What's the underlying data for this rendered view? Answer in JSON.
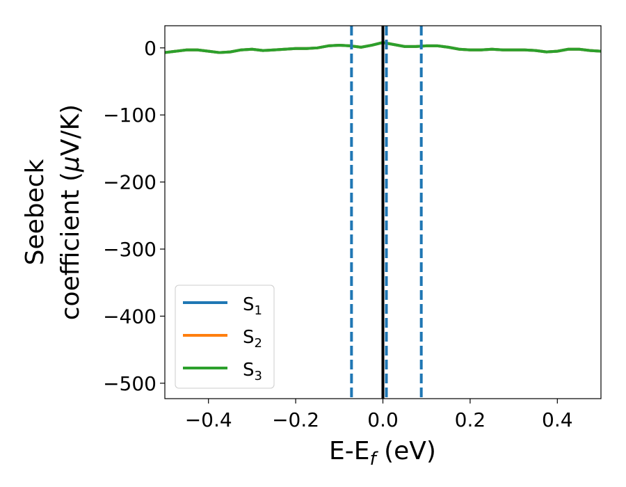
{
  "chart_data": {
    "type": "line",
    "xlabel": {
      "main": "E-E",
      "sub": "f",
      "unit": " (eV)"
    },
    "ylabel": {
      "line1": "Seebeck",
      "line2": "coefficient  (",
      "mu": "μ",
      "line2_end": "V/K)"
    },
    "xlim": [
      -0.5,
      0.5
    ],
    "ylim": [
      -523,
      33
    ],
    "xticks": [
      -0.4,
      -0.2,
      0.0,
      0.2,
      0.4
    ],
    "xtick_labels": [
      "−0.4",
      "−0.2",
      "0.0",
      "0.2",
      "0.4"
    ],
    "yticks": [
      0,
      -100,
      -200,
      -300,
      -400,
      -500
    ],
    "ytick_labels": [
      "0",
      "−100",
      "−200",
      "−300",
      "−400",
      "−500"
    ],
    "grid": false,
    "legend_position": "lower-left",
    "legend": [
      {
        "base": "S",
        "sub": "1",
        "color": "#1f77b4"
      },
      {
        "base": "S",
        "sub": "2",
        "color": "#ff7f0e"
      },
      {
        "base": "S",
        "sub": "3",
        "color": "#2ca02c"
      }
    ],
    "x": [
      -0.5,
      -0.475,
      -0.45,
      -0.425,
      -0.4,
      -0.375,
      -0.35,
      -0.325,
      -0.3,
      -0.275,
      -0.25,
      -0.225,
      -0.2,
      -0.175,
      -0.15,
      -0.125,
      -0.1,
      -0.075,
      -0.05,
      -0.025,
      0.0,
      0.025,
      0.05,
      0.075,
      0.1,
      0.125,
      0.15,
      0.175,
      0.2,
      0.225,
      0.25,
      0.275,
      0.3,
      0.325,
      0.35,
      0.375,
      0.4,
      0.425,
      0.45,
      0.475,
      0.5
    ],
    "series": [
      {
        "name": "S1",
        "color": "#1f77b4",
        "values": [
          -7,
          -5,
          -3,
          -3,
          -5,
          -7,
          -6,
          -3,
          -2,
          -4,
          -3,
          -2,
          -1,
          -1,
          0,
          3,
          4,
          3,
          1,
          4,
          8,
          5,
          2,
          2,
          3,
          3,
          1,
          -2,
          -3,
          -3,
          -2,
          -3,
          -3,
          -3,
          -4,
          -6,
          -5,
          -2,
          -2,
          -4,
          -5
        ]
      },
      {
        "name": "S2",
        "color": "#ff7f0e",
        "values": [
          -7,
          -5,
          -3,
          -3,
          -5,
          -7,
          -6,
          -3,
          -2,
          -4,
          -3,
          -2,
          -1,
          -1,
          0,
          3,
          4,
          3,
          1,
          4,
          8,
          5,
          2,
          2,
          3,
          3,
          1,
          -2,
          -3,
          -3,
          -2,
          -3,
          -3,
          -3,
          -4,
          -6,
          -5,
          -2,
          -2,
          -4,
          -5
        ]
      },
      {
        "name": "S3",
        "color": "#2ca02c",
        "values": [
          -7,
          -5,
          -3,
          -3,
          -5,
          -7,
          -6,
          -3,
          -2,
          -4,
          -3,
          -2,
          -1,
          -1,
          0,
          3,
          4,
          3,
          1,
          4,
          8,
          5,
          2,
          2,
          3,
          3,
          1,
          -2,
          -3,
          -3,
          -2,
          -3,
          -3,
          -3,
          -4,
          -6,
          -5,
          -2,
          -2,
          -4,
          -5
        ]
      }
    ],
    "vlines": [
      {
        "x": 0.0,
        "color": "#000000",
        "style": "solid"
      },
      {
        "x": -0.072,
        "color": "#1f77b4",
        "style": "dashed"
      },
      {
        "x": 0.008,
        "color": "#1f77b4",
        "style": "dashed"
      },
      {
        "x": 0.088,
        "color": "#1f77b4",
        "style": "dashed"
      }
    ]
  }
}
